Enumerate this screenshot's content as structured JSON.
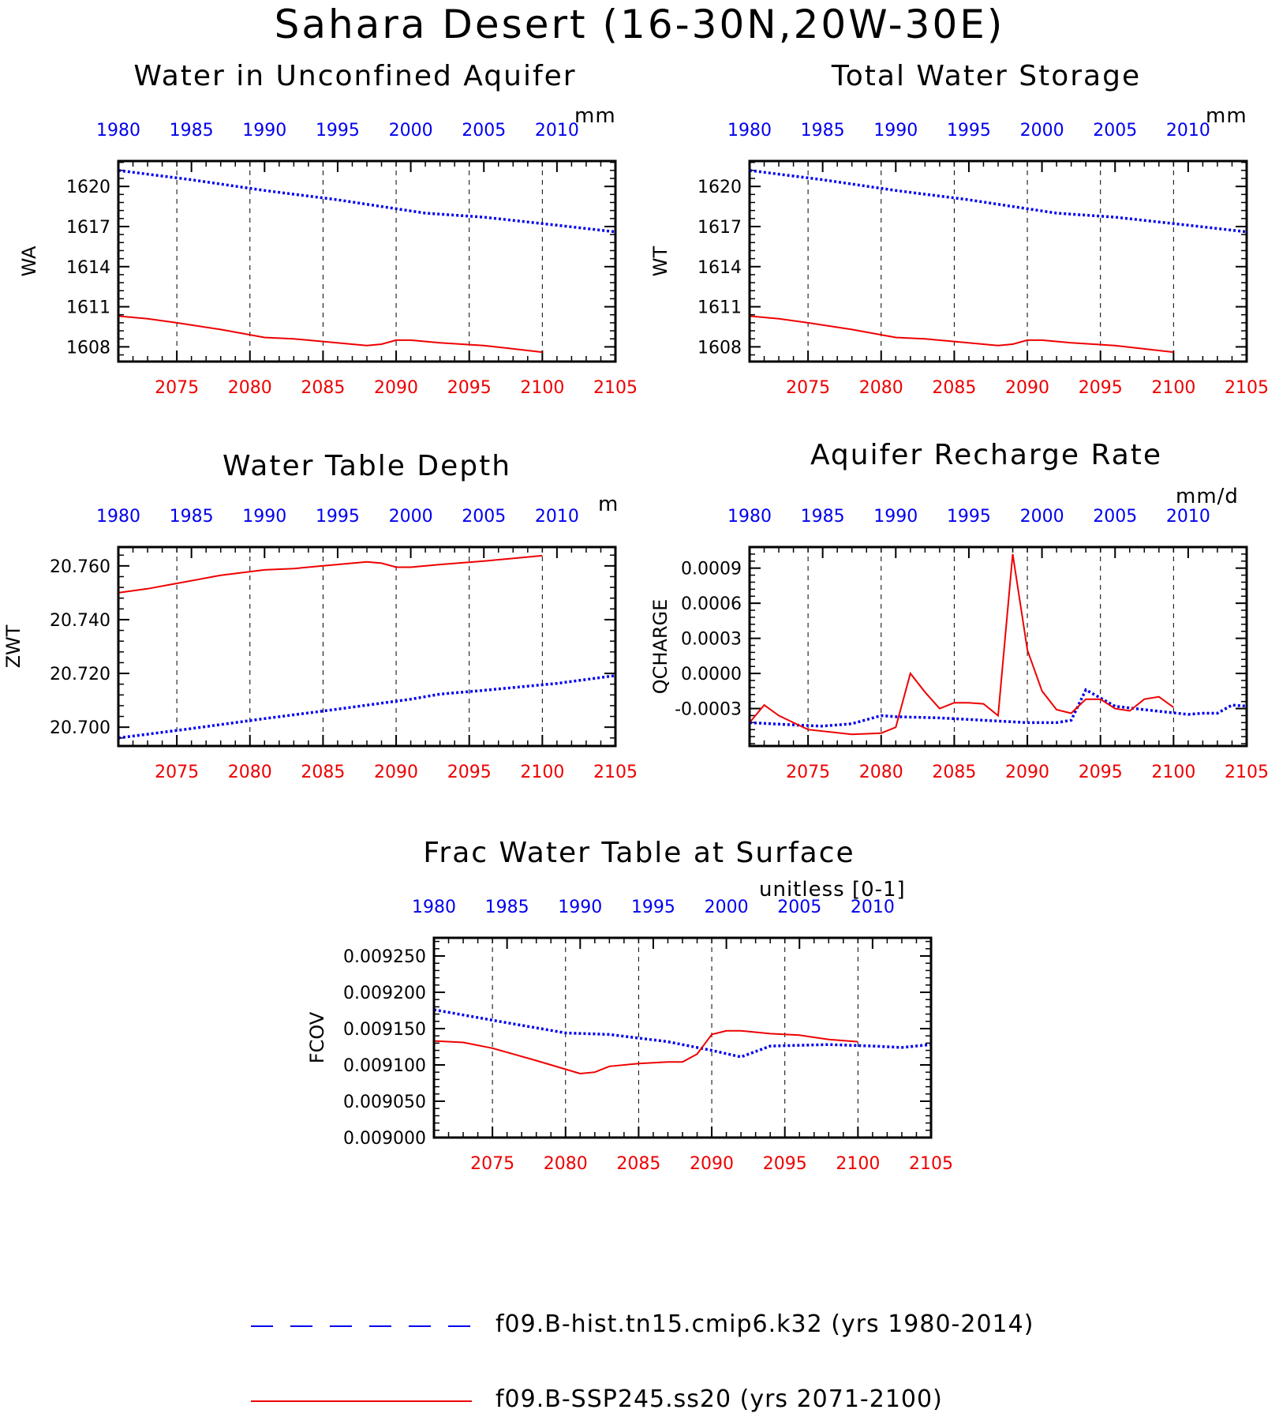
{
  "figure": {
    "title": "Sahara Desert (16-30N,20W-30E)"
  },
  "legend": {
    "hist": {
      "label": "f09.B-hist.tn15.cmip6.k32 (yrs 1980-2014)",
      "color": "#0000ee"
    },
    "ssp": {
      "label": "f09.B-SSP245.ss20 (yrs 2071-2100)",
      "color": "#ee0000"
    }
  },
  "chart_data": [
    {
      "type": "line",
      "title": "Water in Unconfined Aquifer",
      "units": "mm",
      "ylabel": "WA",
      "ylim": [
        1606.9,
        1621.9
      ],
      "yticks": [
        1608,
        1611,
        1614,
        1617,
        1620
      ],
      "ytick_labels": [
        "1608",
        "1611",
        "1614",
        "1617",
        "1620"
      ],
      "x_bottom_lim": [
        2071,
        2105
      ],
      "x_bottom_ticks": [
        2075,
        2080,
        2085,
        2090,
        2095,
        2100,
        2105
      ],
      "x_top_lim": [
        1980,
        2014
      ],
      "x_top_ticks": [
        1980,
        1985,
        1990,
        1995,
        2000,
        2005,
        2010
      ],
      "grid": "vertical dashed at major ticks",
      "series": [
        {
          "name": "f09.B-hist.tn15.cmip6.k32 (yrs 1980-2014)",
          "axis": "top",
          "color": "#0000ee",
          "style": "dotted",
          "x": [
            1980,
            1985,
            1990,
            1995,
            1998,
            2001,
            2005,
            2010,
            2014
          ],
          "y": [
            1621.2,
            1620.5,
            1619.7,
            1619.0,
            1618.5,
            1618.0,
            1617.7,
            1617.1,
            1616.6
          ]
        },
        {
          "name": "f09.B-SSP245.ss20 (yrs 2071-2100)",
          "axis": "bottom",
          "color": "#ee0000",
          "style": "solid",
          "x": [
            2071,
            2073,
            2075,
            2078,
            2081,
            2083,
            2085,
            2088,
            2089,
            2090,
            2091,
            2093,
            2096,
            2100
          ],
          "y": [
            1610.3,
            1610.1,
            1609.8,
            1609.3,
            1608.7,
            1608.6,
            1608.4,
            1608.1,
            1608.2,
            1608.5,
            1608.5,
            1608.3,
            1608.1,
            1607.6
          ]
        }
      ]
    },
    {
      "type": "line",
      "title": "Total Water Storage",
      "units": "mm",
      "ylabel": "WT",
      "ylim": [
        1606.9,
        1621.9
      ],
      "yticks": [
        1608,
        1611,
        1614,
        1617,
        1620
      ],
      "ytick_labels": [
        "1608",
        "1611",
        "1614",
        "1617",
        "1620"
      ],
      "x_bottom_lim": [
        2071,
        2105
      ],
      "x_bottom_ticks": [
        2075,
        2080,
        2085,
        2090,
        2095,
        2100,
        2105
      ],
      "x_top_lim": [
        1980,
        2014
      ],
      "x_top_ticks": [
        1980,
        1985,
        1990,
        1995,
        2000,
        2005,
        2010
      ],
      "grid": "vertical dashed at major ticks",
      "series": [
        {
          "name": "f09.B-hist.tn15.cmip6.k32 (yrs 1980-2014)",
          "axis": "top",
          "color": "#0000ee",
          "style": "dotted",
          "x": [
            1980,
            1985,
            1990,
            1995,
            1998,
            2001,
            2005,
            2010,
            2014
          ],
          "y": [
            1621.2,
            1620.5,
            1619.7,
            1619.0,
            1618.5,
            1618.0,
            1617.7,
            1617.1,
            1616.6
          ]
        },
        {
          "name": "f09.B-SSP245.ss20 (yrs 2071-2100)",
          "axis": "bottom",
          "color": "#ee0000",
          "style": "solid",
          "x": [
            2071,
            2073,
            2075,
            2078,
            2081,
            2083,
            2085,
            2088,
            2089,
            2090,
            2091,
            2093,
            2096,
            2100
          ],
          "y": [
            1610.3,
            1610.1,
            1609.8,
            1609.3,
            1608.7,
            1608.6,
            1608.4,
            1608.1,
            1608.2,
            1608.5,
            1608.5,
            1608.3,
            1608.1,
            1607.6
          ]
        }
      ]
    },
    {
      "type": "line",
      "title": "Water Table Depth",
      "units": "m",
      "ylabel": "ZWT",
      "ylim": [
        20.693,
        20.767
      ],
      "yticks": [
        20.7,
        20.72,
        20.74,
        20.76
      ],
      "ytick_labels": [
        "20.700",
        "20.720",
        "20.740",
        "20.760"
      ],
      "x_bottom_lim": [
        2071,
        2105
      ],
      "x_bottom_ticks": [
        2075,
        2080,
        2085,
        2090,
        2095,
        2100,
        2105
      ],
      "x_top_lim": [
        1980,
        2014
      ],
      "x_top_ticks": [
        1980,
        1985,
        1990,
        1995,
        2000,
        2005,
        2010
      ],
      "grid": "vertical dashed at major ticks",
      "series": [
        {
          "name": "f09.B-hist.tn15.cmip6.k32 (yrs 1980-2014)",
          "axis": "top",
          "color": "#0000ee",
          "style": "dotted",
          "x": [
            1980,
            1985,
            1990,
            1995,
            2000,
            2002,
            2005,
            2010,
            2014
          ],
          "y": [
            20.696,
            20.6995,
            20.7032,
            20.7067,
            20.7104,
            20.7123,
            20.7137,
            20.7163,
            20.7192
          ]
        },
        {
          "name": "f09.B-SSP245.ss20 (yrs 2071-2100)",
          "axis": "bottom",
          "color": "#ee0000",
          "style": "solid",
          "x": [
            2071,
            2073,
            2075,
            2078,
            2081,
            2083,
            2085,
            2088,
            2089,
            2090,
            2091,
            2093,
            2096,
            2100
          ],
          "y": [
            20.75,
            20.7515,
            20.7535,
            20.7565,
            20.7585,
            20.759,
            20.76,
            20.7615,
            20.761,
            20.7595,
            20.7595,
            20.7605,
            20.7618,
            20.7638
          ]
        }
      ]
    },
    {
      "type": "line",
      "title": "Aquifer Recharge Rate",
      "units": "mm/d",
      "ylabel": "QCHARGE",
      "ylim": [
        -0.00062,
        0.00108
      ],
      "yticks": [
        -0.0003,
        0.0,
        0.0003,
        0.0006,
        0.0009
      ],
      "ytick_labels": [
        "-0.0003",
        "0.0000",
        "0.0003",
        "0.0006",
        "0.0009"
      ],
      "x_bottom_lim": [
        2071,
        2105
      ],
      "x_bottom_ticks": [
        2075,
        2080,
        2085,
        2090,
        2095,
        2100,
        2105
      ],
      "x_top_lim": [
        1980,
        2014
      ],
      "x_top_ticks": [
        1980,
        1985,
        1990,
        1995,
        2000,
        2005,
        2010
      ],
      "grid": "vertical dashed at major ticks",
      "series": [
        {
          "name": "f09.B-hist.tn15.cmip6.k32 (yrs 1980-2014)",
          "axis": "top",
          "color": "#0000ee",
          "style": "dotted",
          "x": [
            1980,
            1983,
            1985,
            1987,
            1989,
            1990,
            1993,
            1996,
            1999,
            2001,
            2002,
            2003,
            2005,
            2007,
            2010,
            2011,
            2012,
            2013,
            2014
          ],
          "y": [
            -0.00042,
            -0.00044,
            -0.00045,
            -0.00043,
            -0.00036,
            -0.00037,
            -0.00038,
            -0.0004,
            -0.00042,
            -0.00042,
            -0.0004,
            -0.00014,
            -0.00028,
            -0.00031,
            -0.00035,
            -0.00034,
            -0.00034,
            -0.00027,
            -0.00028
          ]
        },
        {
          "name": "f09.B-SSP245.ss20 (yrs 2071-2100)",
          "axis": "bottom",
          "color": "#ee0000",
          "style": "solid",
          "x": [
            2071,
            2072,
            2073,
            2075,
            2078,
            2080,
            2081,
            2082,
            2083,
            2084,
            2085,
            2086,
            2087,
            2088,
            2089,
            2090,
            2091,
            2092,
            2093,
            2094,
            2095,
            2096,
            2097,
            2098,
            2099,
            2100
          ],
          "y": [
            -0.00042,
            -0.00027,
            -0.00036,
            -0.00048,
            -0.00052,
            -0.00051,
            -0.00046,
            0.0,
            -0.00016,
            -0.0003,
            -0.00025,
            -0.00025,
            -0.00026,
            -0.00036,
            0.00102,
            0.0002,
            -0.00015,
            -0.00031,
            -0.00034,
            -0.00022,
            -0.00022,
            -0.0003,
            -0.00032,
            -0.00022,
            -0.0002,
            -0.00029
          ]
        }
      ]
    },
    {
      "type": "line",
      "title": "Frac Water Table at Surface",
      "units": "unitless [0-1]",
      "ylabel": "FCOV",
      "ylim": [
        0.009,
        0.009275
      ],
      "yticks": [
        0.009,
        0.00905,
        0.0091,
        0.00915,
        0.0092,
        0.00925
      ],
      "ytick_labels": [
        "0.009000",
        "0.009050",
        "0.009100",
        "0.009150",
        "0.009200",
        "0.009250"
      ],
      "x_bottom_lim": [
        2071,
        2105
      ],
      "x_bottom_ticks": [
        2075,
        2080,
        2085,
        2090,
        2095,
        2100,
        2105
      ],
      "x_top_lim": [
        1980,
        2014
      ],
      "x_top_ticks": [
        1980,
        1985,
        1990,
        1995,
        2000,
        2005,
        2010
      ],
      "grid": "vertical dashed at major ticks",
      "series": [
        {
          "name": "f09.B-hist.tn15.cmip6.k32 (yrs 1980-2014)",
          "axis": "top",
          "color": "#0000ee",
          "style": "dotted",
          "x": [
            1980,
            1985,
            1989,
            1992,
            1996,
            1999,
            2001,
            2003,
            2007,
            2010,
            2012,
            2014
          ],
          "y": [
            0.009176,
            0.009158,
            0.009144,
            0.009142,
            0.009132,
            0.00912,
            0.009111,
            0.009126,
            0.009128,
            0.009126,
            0.009124,
            0.009128
          ]
        },
        {
          "name": "f09.B-SSP245.ss20 (yrs 2071-2100)",
          "axis": "bottom",
          "color": "#ee0000",
          "style": "solid",
          "x": [
            2071,
            2073,
            2075,
            2078,
            2080,
            2081,
            2082,
            2083,
            2085,
            2087,
            2088,
            2089,
            2090,
            2091,
            2092,
            2094,
            2096,
            2098,
            2100
          ],
          "y": [
            0.009133,
            0.009131,
            0.009123,
            0.009106,
            0.009094,
            0.009088,
            0.00909,
            0.009098,
            0.009102,
            0.009104,
            0.009104,
            0.009115,
            0.009142,
            0.009147,
            0.009147,
            0.009143,
            0.009141,
            0.009135,
            0.009132
          ]
        }
      ]
    }
  ]
}
